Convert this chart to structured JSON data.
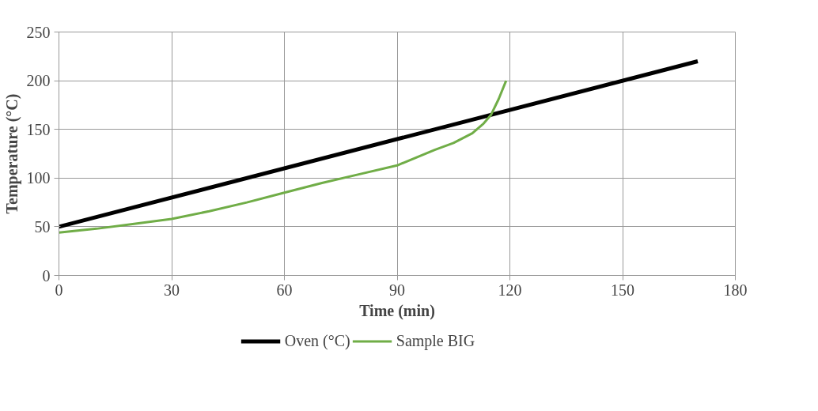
{
  "chart_data": {
    "type": "line",
    "xlabel": "Time (min)",
    "ylabel": "Temperature (°C)",
    "xlim": [
      0,
      180
    ],
    "xticks": [
      0,
      30,
      60,
      90,
      120,
      150,
      180
    ],
    "ylim": [
      0,
      250
    ],
    "yticks": [
      0,
      50,
      100,
      150,
      200,
      250
    ],
    "grid": true,
    "legend": "bottom",
    "marker": "none",
    "line_style": "solid",
    "series": [
      {
        "name": "Oven (°C)",
        "color": "#000000",
        "x": [
          0,
          170
        ],
        "values": [
          50,
          220
        ]
      },
      {
        "name": "Sample BIG",
        "color": "#70ad47",
        "x": [
          0,
          10,
          20,
          30,
          40,
          50,
          60,
          70,
          80,
          90,
          100,
          105,
          110,
          113,
          115,
          117,
          119
        ],
        "values": [
          44,
          48,
          53,
          58,
          66,
          75,
          85,
          95,
          104,
          113,
          129,
          136,
          146,
          156,
          165,
          181,
          200
        ]
      }
    ]
  }
}
